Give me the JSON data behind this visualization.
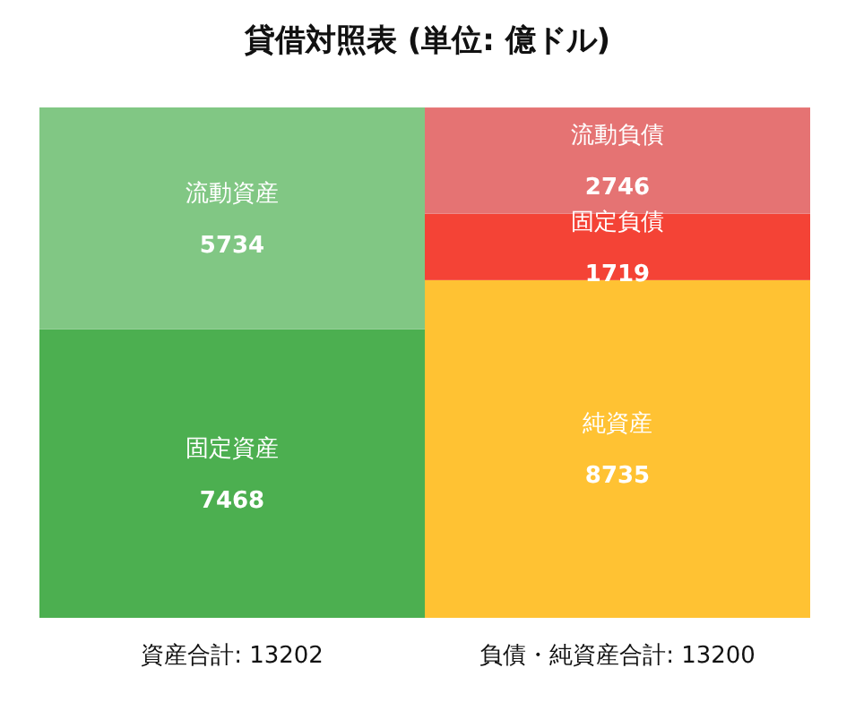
{
  "chart_data": {
    "type": "bar",
    "title": "貸借対照表 (単位: 億ドル)",
    "categories": [
      "資産合計: 13202",
      "負債・純資産合計: 13200"
    ],
    "stacked": true,
    "data_labels": true,
    "series": [
      {
        "name": "固定資産",
        "color": "#4caf50",
        "values": [
          7468,
          null
        ]
      },
      {
        "name": "流動資産",
        "color": "#81c784",
        "values": [
          5734,
          null
        ]
      },
      {
        "name": "純資産",
        "color": "#ffc233",
        "values": [
          null,
          8735
        ]
      },
      {
        "name": "固定負債",
        "color": "#f44336",
        "values": [
          null,
          1719
        ]
      },
      {
        "name": "流動負債",
        "color": "#e57373",
        "values": [
          null,
          2746
        ]
      }
    ]
  }
}
